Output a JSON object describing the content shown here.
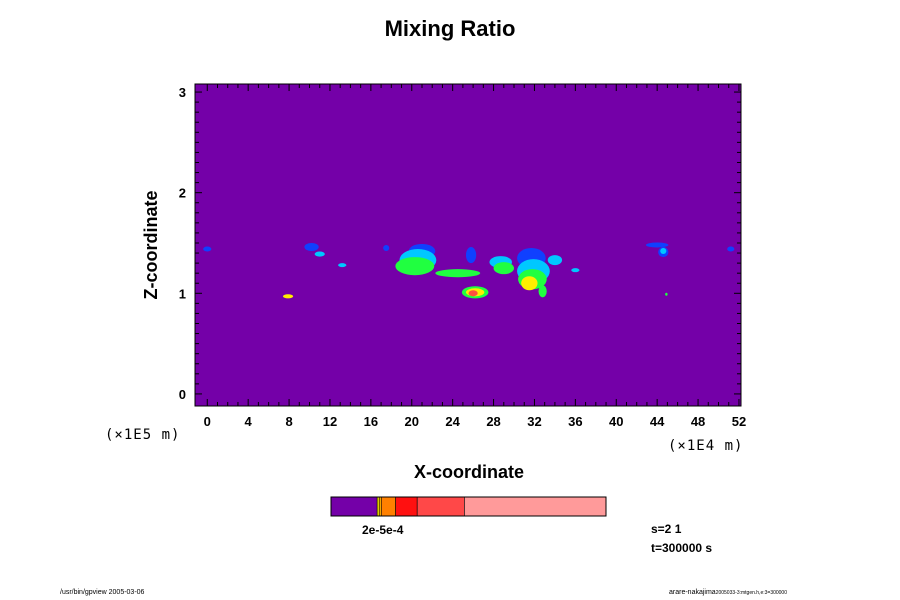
{
  "chart_data": {
    "type": "heatmap",
    "title": "Mixing Ratio",
    "xlabel": "X-coordinate",
    "ylabel": "Z-coordinate",
    "x_scale_note": "(×1E4 m)",
    "y_scale_note": "(×1E5 m)",
    "xlim": [
      -1.2,
      52.2
    ],
    "ylim": [
      -0.12,
      3.08
    ],
    "x_ticks": [
      0,
      4,
      8,
      12,
      16,
      20,
      24,
      28,
      32,
      36,
      40,
      44,
      48,
      52
    ],
    "y_ticks": [
      0,
      1,
      2,
      3
    ],
    "x_tick_labels": [
      "0",
      "4",
      "8",
      "12",
      "16",
      "20",
      "24",
      "28",
      "32",
      "36",
      "40",
      "44",
      "48",
      "52"
    ],
    "y_tick_labels": [
      "0",
      "1",
      "2",
      "3"
    ],
    "background_color": "#7400a8",
    "level_colors": [
      "#7400a8",
      "#1040ff",
      "#00c8ff",
      "#20ff40",
      "#ffee00",
      "#ff5040"
    ],
    "blobs": [
      {
        "x": 0.0,
        "z": 1.44,
        "rx": 0.4,
        "rz": 0.025,
        "level": 1
      },
      {
        "x": 10.2,
        "z": 1.46,
        "rx": 0.7,
        "rz": 0.04,
        "level": 1
      },
      {
        "x": 11.0,
        "z": 1.39,
        "rx": 0.5,
        "rz": 0.025,
        "level": 2
      },
      {
        "x": 13.2,
        "z": 1.28,
        "rx": 0.4,
        "rz": 0.02,
        "level": 2
      },
      {
        "x": 7.9,
        "z": 0.97,
        "rx": 0.5,
        "rz": 0.02,
        "level": 4
      },
      {
        "x": 17.5,
        "z": 1.45,
        "rx": 0.3,
        "rz": 0.03,
        "level": 1
      },
      {
        "x": 21.0,
        "z": 1.42,
        "rx": 1.3,
        "rz": 0.07,
        "level": 1
      },
      {
        "x": 20.6,
        "z": 1.33,
        "rx": 1.8,
        "rz": 0.11,
        "level": 2
      },
      {
        "x": 20.3,
        "z": 1.27,
        "rx": 1.9,
        "rz": 0.09,
        "level": 3
      },
      {
        "x": 24.5,
        "z": 1.2,
        "rx": 2.2,
        "rz": 0.04,
        "level": 3
      },
      {
        "x": 26.2,
        "z": 1.01,
        "rx": 1.3,
        "rz": 0.06,
        "level": 3
      },
      {
        "x": 26.2,
        "z": 1.01,
        "rx": 0.9,
        "rz": 0.04,
        "level": 4
      },
      {
        "x": 26.0,
        "z": 1.0,
        "rx": 0.45,
        "rz": 0.03,
        "level": 5
      },
      {
        "x": 25.8,
        "z": 1.38,
        "rx": 0.5,
        "rz": 0.08,
        "level": 1
      },
      {
        "x": 28.7,
        "z": 1.31,
        "rx": 1.1,
        "rz": 0.06,
        "level": 2
      },
      {
        "x": 29.0,
        "z": 1.25,
        "rx": 1.0,
        "rz": 0.06,
        "level": 3
      },
      {
        "x": 31.7,
        "z": 1.35,
        "rx": 1.4,
        "rz": 0.1,
        "level": 1
      },
      {
        "x": 31.9,
        "z": 1.22,
        "rx": 1.6,
        "rz": 0.12,
        "level": 2
      },
      {
        "x": 31.8,
        "z": 1.14,
        "rx": 1.4,
        "rz": 0.1,
        "level": 3
      },
      {
        "x": 31.5,
        "z": 1.1,
        "rx": 0.8,
        "rz": 0.07,
        "level": 4
      },
      {
        "x": 32.8,
        "z": 1.02,
        "rx": 0.4,
        "rz": 0.06,
        "level": 3
      },
      {
        "x": 34.0,
        "z": 1.33,
        "rx": 0.7,
        "rz": 0.05,
        "level": 2
      },
      {
        "x": 36.0,
        "z": 1.23,
        "rx": 0.4,
        "rz": 0.02,
        "level": 2
      },
      {
        "x": 44.0,
        "z": 1.48,
        "rx": 1.1,
        "rz": 0.025,
        "level": 1
      },
      {
        "x": 44.6,
        "z": 1.41,
        "rx": 0.5,
        "rz": 0.05,
        "level": 1
      },
      {
        "x": 44.6,
        "z": 1.42,
        "rx": 0.3,
        "rz": 0.03,
        "level": 2
      },
      {
        "x": 44.9,
        "z": 0.99,
        "rx": 0.12,
        "rz": 0.015,
        "level": 3
      },
      {
        "x": 51.2,
        "z": 1.44,
        "rx": 0.35,
        "rz": 0.025,
        "level": 1
      }
    ],
    "colorbar": {
      "segments": [
        {
          "color": "#7400a8",
          "weight": 45
        },
        {
          "color": "#ffee00",
          "weight": 2
        },
        {
          "color": "#ffb000",
          "weight": 2
        },
        {
          "color": "#ff8000",
          "weight": 14
        },
        {
          "color": "#ff1010",
          "weight": 21
        },
        {
          "color": "#ff4848",
          "weight": 46
        },
        {
          "color": "#ff9a9a",
          "weight": 138
        }
      ],
      "labels_text": "2e-5e-4"
    }
  },
  "info": {
    "s_label": "s=2 1",
    "t_label": "t=300000 s"
  },
  "footer": {
    "left": "/usr/bin/gpview 2005-03-06",
    "right_main": "arare-nakajima",
    "right_small": "2005033-3:mtgen.h,e:3=300000"
  }
}
